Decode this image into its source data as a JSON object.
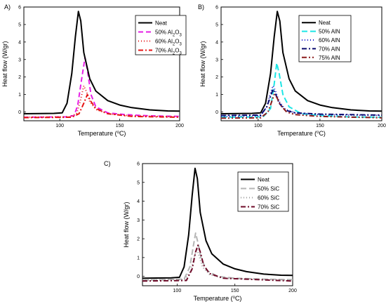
{
  "chart_data": [
    {
      "type": "line",
      "panel_label": "A)",
      "xlabel": "Temperature (°C)",
      "ylabel": "Heat flow (W/gr)",
      "xlim": [
        70,
        200
      ],
      "ylim": [
        -0.5,
        6
      ],
      "x_ticks": [
        100,
        150,
        200
      ],
      "y_ticks": [
        0,
        1,
        2,
        3,
        4,
        5,
        6
      ],
      "legend_position": "top-right",
      "series": [
        {
          "name": "Neat",
          "color": "#000000",
          "dash": "",
          "width": 2,
          "points": [
            [
              70,
              -0.1
            ],
            [
              95,
              -0.08
            ],
            [
              102,
              -0.05
            ],
            [
              106,
              0.5
            ],
            [
              110,
              2.2
            ],
            [
              113,
              4.3
            ],
            [
              115.5,
              5.75
            ],
            [
              117.5,
              5.2
            ],
            [
              120,
              3.4
            ],
            [
              125,
              1.9
            ],
            [
              130,
              1.2
            ],
            [
              140,
              0.65
            ],
            [
              150,
              0.4
            ],
            [
              160,
              0.25
            ],
            [
              175,
              0.12
            ],
            [
              190,
              0.06
            ],
            [
              200,
              0.05
            ]
          ]
        },
        {
          "name": "50% Al2O3",
          "color": "#e61ee6",
          "dash": "7,4",
          "width": 2,
          "points": [
            [
              70,
              -0.3
            ],
            [
              105,
              -0.28
            ],
            [
              112,
              -0.2
            ],
            [
              115,
              0.4
            ],
            [
              118,
              1.8
            ],
            [
              121,
              3.1
            ],
            [
              123,
              2.4
            ],
            [
              126,
              1.0
            ],
            [
              130,
              0.3
            ],
            [
              140,
              -0.05
            ],
            [
              155,
              -0.15
            ],
            [
              175,
              -0.22
            ],
            [
              200,
              -0.25
            ]
          ]
        },
        {
          "name": "60% Al2O3",
          "color": "#e61414",
          "dash": "1,3",
          "width": 2,
          "points": [
            [
              70,
              -0.3
            ],
            [
              108,
              -0.28
            ],
            [
              114,
              -0.1
            ],
            [
              117,
              0.6
            ],
            [
              120,
              1.5
            ],
            [
              122,
              1.2
            ],
            [
              125,
              0.6
            ],
            [
              130,
              0.15
            ],
            [
              140,
              -0.1
            ],
            [
              160,
              -0.22
            ],
            [
              200,
              -0.28
            ]
          ]
        },
        {
          "name": "70% Al2O3",
          "color": "#e61414",
          "dash": "7,3,2,3",
          "width": 2,
          "points": [
            [
              70,
              -0.32
            ],
            [
              110,
              -0.3
            ],
            [
              116,
              -0.1
            ],
            [
              120,
              0.5
            ],
            [
              123,
              1.0
            ],
            [
              126,
              0.6
            ],
            [
              130,
              0.2
            ],
            [
              140,
              -0.1
            ],
            [
              160,
              -0.25
            ],
            [
              200,
              -0.3
            ]
          ]
        }
      ]
    },
    {
      "type": "line",
      "panel_label": "B)",
      "xlabel": "Temperature (°C)",
      "ylabel": "Heat flow (W/gr)",
      "xlim": [
        70,
        200
      ],
      "ylim": [
        -0.5,
        6
      ],
      "x_ticks": [
        100,
        150,
        200
      ],
      "y_ticks": [
        0,
        1,
        2,
        3,
        4,
        5,
        6
      ],
      "legend_position": "top-right",
      "series": [
        {
          "name": "Neat",
          "color": "#000000",
          "dash": "",
          "width": 2,
          "points": [
            [
              70,
              -0.1
            ],
            [
              95,
              -0.08
            ],
            [
              102,
              -0.05
            ],
            [
              106,
              0.5
            ],
            [
              110,
              2.2
            ],
            [
              113,
              4.3
            ],
            [
              115.5,
              5.75
            ],
            [
              117.5,
              5.2
            ],
            [
              120,
              3.4
            ],
            [
              125,
              1.9
            ],
            [
              130,
              1.2
            ],
            [
              140,
              0.65
            ],
            [
              150,
              0.4
            ],
            [
              160,
              0.25
            ],
            [
              175,
              0.12
            ],
            [
              190,
              0.06
            ],
            [
              200,
              0.05
            ]
          ]
        },
        {
          "name": "50% AlN",
          "color": "#1ee6e6",
          "dash": "8,4",
          "width": 2,
          "points": [
            [
              70,
              -0.3
            ],
            [
              104,
              -0.28
            ],
            [
              110,
              0.2
            ],
            [
              113,
              1.6
            ],
            [
              115,
              2.8
            ],
            [
              117,
              2.2
            ],
            [
              120,
              1.0
            ],
            [
              125,
              0.3
            ],
            [
              135,
              -0.1
            ],
            [
              150,
              -0.2
            ],
            [
              175,
              -0.28
            ],
            [
              200,
              -0.3
            ]
          ]
        },
        {
          "name": "60% AlN",
          "color": "#1414c8",
          "dash": "1,3",
          "width": 2,
          "points": [
            [
              70,
              -0.25
            ],
            [
              102,
              -0.22
            ],
            [
              107,
              0.3
            ],
            [
              110,
              1.1
            ],
            [
              112,
              1.5
            ],
            [
              114,
              1.2
            ],
            [
              117,
              0.6
            ],
            [
              122,
              0.15
            ],
            [
              130,
              -0.05
            ],
            [
              150,
              -0.15
            ],
            [
              200,
              -0.2
            ]
          ]
        },
        {
          "name": "70% AlN",
          "color": "#0a0a6e",
          "dash": "7,3,2,3",
          "width": 2,
          "points": [
            [
              70,
              -0.2
            ],
            [
              102,
              -0.18
            ],
            [
              107,
              0.3
            ],
            [
              110,
              0.9
            ],
            [
              112,
              1.3
            ],
            [
              114,
              1.05
            ],
            [
              117,
              0.5
            ],
            [
              122,
              0.1
            ],
            [
              130,
              -0.05
            ],
            [
              150,
              -0.12
            ],
            [
              200,
              -0.18
            ]
          ]
        },
        {
          "name": "75% AlN",
          "color": "#8b1a1a",
          "dash": "7,3,2,3,2,3",
          "width": 2,
          "points": [
            [
              70,
              -0.35
            ],
            [
              102,
              -0.33
            ],
            [
              108,
              0.0
            ],
            [
              111,
              0.6
            ],
            [
              113,
              1.0
            ],
            [
              115,
              0.85
            ],
            [
              118,
              0.4
            ],
            [
              123,
              0.0
            ],
            [
              130,
              -0.15
            ],
            [
              150,
              -0.25
            ],
            [
              200,
              -0.33
            ]
          ]
        }
      ]
    },
    {
      "type": "line",
      "panel_label": "C)",
      "xlabel": "Temperature (°C)",
      "ylabel": "Heat flow (W/gr)",
      "xlim": [
        70,
        200
      ],
      "ylim": [
        -0.5,
        6
      ],
      "x_ticks": [
        100,
        150,
        200
      ],
      "y_ticks": [
        0,
        1,
        2,
        3,
        4,
        5,
        6
      ],
      "legend_position": "top-right",
      "series": [
        {
          "name": "Neat",
          "color": "#000000",
          "dash": "",
          "width": 2,
          "points": [
            [
              70,
              -0.1
            ],
            [
              95,
              -0.08
            ],
            [
              102,
              -0.05
            ],
            [
              106,
              0.5
            ],
            [
              110,
              2.2
            ],
            [
              113,
              4.3
            ],
            [
              115.5,
              5.75
            ],
            [
              117.5,
              5.2
            ],
            [
              120,
              3.4
            ],
            [
              125,
              1.9
            ],
            [
              130,
              1.2
            ],
            [
              140,
              0.65
            ],
            [
              150,
              0.4
            ],
            [
              160,
              0.25
            ],
            [
              175,
              0.12
            ],
            [
              190,
              0.06
            ],
            [
              200,
              0.05
            ]
          ]
        },
        {
          "name": "50% SiC",
          "color": "#b4b4b4",
          "dash": "8,4",
          "width": 2,
          "points": [
            [
              70,
              -0.2
            ],
            [
              106,
              -0.15
            ],
            [
              111,
              0.5
            ],
            [
              114,
              1.6
            ],
            [
              116,
              2.3
            ],
            [
              118,
              1.8
            ],
            [
              121,
              0.9
            ],
            [
              126,
              0.3
            ],
            [
              135,
              0.0
            ],
            [
              150,
              -0.1
            ],
            [
              175,
              -0.15
            ],
            [
              200,
              -0.18
            ]
          ]
        },
        {
          "name": "60% SiC",
          "color": "#999999",
          "dash": "1,3",
          "width": 2,
          "points": [
            [
              70,
              -0.2
            ],
            [
              106,
              -0.18
            ],
            [
              112,
              0.3
            ],
            [
              115,
              1.1
            ],
            [
              117,
              1.45
            ],
            [
              119,
              1.1
            ],
            [
              122,
              0.5
            ],
            [
              128,
              0.1
            ],
            [
              140,
              -0.1
            ],
            [
              200,
              -0.2
            ]
          ]
        },
        {
          "name": "70% SiC",
          "color": "#6e0a28",
          "dash": "7,3,2,3",
          "width": 2,
          "points": [
            [
              70,
              -0.25
            ],
            [
              108,
              -0.22
            ],
            [
              113,
              0.4
            ],
            [
              116,
              1.3
            ],
            [
              118,
              1.65
            ],
            [
              120,
              1.3
            ],
            [
              123,
              0.6
            ],
            [
              128,
              0.15
            ],
            [
              140,
              -0.1
            ],
            [
              200,
              -0.25
            ]
          ]
        }
      ]
    }
  ]
}
